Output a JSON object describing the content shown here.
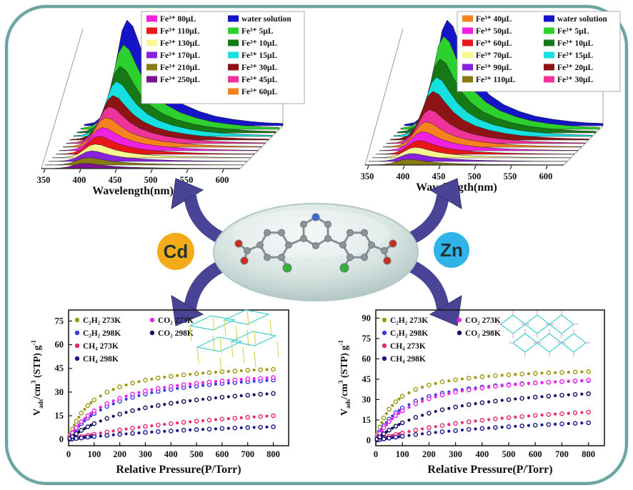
{
  "figure": {
    "cd_label": "Cd",
    "zn_label": "Zn"
  },
  "colors": {
    "border_accent": "#6aa4a1",
    "arrow": "#4a4496",
    "cd_badge": "#f3ac17",
    "zn_badge": "#2fb3e8",
    "ellipse_fill": "#d9e5e3",
    "molecule": {
      "carbon": "#8f949c",
      "nitrogen": "#3a6bd6",
      "oxygen": "#d42a1e",
      "chlorine": "#35b03c"
    }
  },
  "chart_data": [
    {
      "id": "tl_spectra",
      "type": "area",
      "style": "3d-waterfall",
      "xlabel": "Wavelength(nm)",
      "x_ticks": [
        350,
        400,
        450,
        500,
        550,
        600
      ],
      "legend_x": 168,
      "legend": {
        "col1": [
          7,
          8,
          9,
          10,
          11,
          12
        ],
        "col2": [
          0,
          1,
          2,
          3,
          4,
          5,
          6
        ]
      },
      "series": [
        {
          "name": "water solution",
          "color": "#1515c8",
          "peak": 1.0
        },
        {
          "name": "Fe³⁺ 5μL",
          "color": "#2ed02e",
          "peak": 0.8
        },
        {
          "name": "Fe³⁺ 10μL",
          "color": "#157a15",
          "peak": 0.63
        },
        {
          "name": "Fe³⁺ 15μL",
          "color": "#17e0e0",
          "peak": 0.52
        },
        {
          "name": "Fe³⁺ 30μL",
          "color": "#8c1414",
          "peak": 0.42
        },
        {
          "name": "Fe³⁺ 45μL",
          "color": "#f0329b",
          "peak": 0.35
        },
        {
          "name": "Fe³⁺ 60μL",
          "color": "#f5821e",
          "peak": 0.28
        },
        {
          "name": "Fe³⁺ 80μL",
          "color": "#f020e0",
          "peak": 0.22
        },
        {
          "name": "Fe³⁺ 110μL",
          "color": "#e81616",
          "peak": 0.17
        },
        {
          "name": "Fe³⁺ 130μL",
          "color": "#f8f890",
          "peak": 0.13
        },
        {
          "name": "Fe³⁺ 170μL",
          "color": "#8822dd",
          "peak": 0.1
        },
        {
          "name": "Fe³⁺ 210μL",
          "color": "#8a7a14",
          "peak": 0.07
        },
        {
          "name": "Fe³⁺ 250μL",
          "color": "#7a1490",
          "peak": 0.05
        }
      ]
    },
    {
      "id": "tr_spectra",
      "type": "area",
      "style": "3d-waterfall",
      "xlabel": "Wavelength(nm)",
      "x_ticks": [
        350,
        400,
        450,
        500,
        550,
        600
      ],
      "legend_x": 162,
      "legend": {
        "col1": [
          6,
          7,
          8,
          9,
          10,
          11
        ],
        "col2": [
          0,
          1,
          2,
          3,
          4,
          5
        ]
      },
      "series": [
        {
          "name": "water solution",
          "color": "#1515c8",
          "peak": 1.0
        },
        {
          "name": "Fe³⁺ 5μL",
          "color": "#2ed02e",
          "peak": 0.88
        },
        {
          "name": "Fe³⁺ 10μL",
          "color": "#157a15",
          "peak": 0.7
        },
        {
          "name": "Fe³⁺ 15μL",
          "color": "#17e0e0",
          "peak": 0.56
        },
        {
          "name": "Fe³⁺ 20μL",
          "color": "#8c1414",
          "peak": 0.46
        },
        {
          "name": "Fe³⁺ 30μL",
          "color": "#f0329b",
          "peak": 0.32
        },
        {
          "name": "Fe³⁺ 40μL",
          "color": "#f5821e",
          "peak": 0.24
        },
        {
          "name": "Fe³⁺ 50μL",
          "color": "#f020e0",
          "peak": 0.18
        },
        {
          "name": "Fe³⁺ 60μL",
          "color": "#e81616",
          "peak": 0.13
        },
        {
          "name": "Fe³⁺ 70μL",
          "color": "#f8f890",
          "peak": 0.1
        },
        {
          "name": "Fe³⁺ 90μL",
          "color": "#8822dd",
          "peak": 0.075
        },
        {
          "name": "Fe³⁺ 110μL",
          "color": "#8a7a14",
          "peak": 0.055
        }
      ]
    },
    {
      "id": "bl_isotherm",
      "type": "scatter",
      "xlabel": "Relative Pressure(P/Torr)",
      "ylabel_parts": [
        {
          "t": "V",
          "s": 0
        },
        {
          "t": "ads",
          "s": 1
        },
        {
          "t": "/cm",
          "s": 0
        },
        {
          "t": "3",
          "s": -1
        },
        {
          "t": " (STP) g",
          "s": 0
        },
        {
          "t": "-1",
          "s": -1
        }
      ],
      "x_ticks": [
        0,
        100,
        200,
        300,
        400,
        500,
        600,
        700,
        800
      ],
      "y_ticks": [
        0,
        15,
        30,
        45,
        60,
        75
      ],
      "ylim": [
        -4,
        82
      ],
      "inset": "cd",
      "x": [
        5,
        15,
        30,
        50,
        75,
        100,
        150,
        200,
        250,
        300,
        350,
        400,
        450,
        500,
        550,
        600,
        650,
        700,
        750,
        800
      ],
      "series": [
        {
          "name": "C₂H₂ 273K",
          "color": "#9a9a10",
          "values": [
            2.4,
            6.5,
            11.5,
            16.7,
            21.4,
            25.0,
            30.0,
            33.3,
            35.7,
            37.5,
            38.9,
            40.0,
            40.9,
            41.7,
            42.3,
            42.9,
            43.3,
            43.8,
            44.1,
            44.4
          ]
        },
        {
          "name": "C₂H₂ 298K",
          "color": "#3a3ae0",
          "values": [
            1.2,
            3.5,
            6.6,
            10.0,
            13.5,
            16.4,
            20.9,
            24.2,
            26.7,
            28.8,
            30.4,
            31.7,
            32.9,
            33.8,
            34.7,
            35.4,
            36.0,
            36.6,
            37.1,
            37.6
          ]
        },
        {
          "name": "CH₄  273K",
          "color": "#e8286e",
          "values": [
            0.2,
            0.6,
            1.1,
            1.8,
            2.6,
            3.3,
            4.7,
            6.0,
            7.1,
            8.2,
            9.1,
            10.0,
            10.8,
            11.5,
            12.2,
            12.9,
            13.4,
            14.0,
            14.5,
            15.0
          ]
        },
        {
          "name": "CH₄  298K",
          "color": "#18188c",
          "values": [
            0.1,
            0.3,
            0.6,
            0.9,
            1.4,
            1.8,
            2.5,
            3.2,
            3.8,
            4.4,
            4.9,
            5.3,
            5.8,
            6.2,
            6.5,
            6.9,
            7.2,
            7.5,
            7.7,
            8.0
          ]
        },
        {
          "name": "CO₂  273K",
          "color": "#ee22ee",
          "values": [
            1.4,
            4.0,
            7.4,
            11.2,
            15.0,
            18.1,
            22.7,
            26.1,
            28.7,
            30.7,
            32.3,
            33.6,
            34.7,
            35.6,
            36.4,
            37.1,
            37.7,
            38.3,
            38.7,
            39.2
          ]
        },
        {
          "name": "CO₂  298K",
          "color": "#101060",
          "values": [
            0.7,
            1.9,
            3.6,
            5.7,
            8.0,
            10.0,
            13.3,
            16.0,
            18.2,
            20.0,
            21.5,
            22.9,
            24.0,
            25.0,
            25.9,
            26.7,
            27.4,
            28.0,
            28.6,
            29.1
          ]
        }
      ]
    },
    {
      "id": "br_isotherm",
      "type": "scatter",
      "xlabel": "Relative Pressure(P/Torr)",
      "ylabel_parts": [
        {
          "t": "V",
          "s": 0
        },
        {
          "t": "ads",
          "s": 1
        },
        {
          "t": "/cm",
          "s": 0
        },
        {
          "t": "3",
          "s": -1
        },
        {
          "t": " (STP) g",
          "s": 0
        },
        {
          "t": "-1",
          "s": -1
        }
      ],
      "x_ticks": [
        0,
        100,
        200,
        300,
        400,
        500,
        600,
        700,
        800
      ],
      "y_ticks": [
        0,
        15,
        30,
        45,
        60,
        75,
        90
      ],
      "ylim": [
        -4,
        96
      ],
      "inset": "zn",
      "x": [
        5,
        15,
        30,
        50,
        75,
        100,
        150,
        200,
        250,
        300,
        350,
        400,
        450,
        500,
        550,
        600,
        650,
        700,
        750,
        800
      ],
      "series": [
        {
          "name": "C₂H₂ 273K",
          "color": "#9a9a10",
          "values": [
            3.7,
            9.7,
            16.5,
            22.9,
            28.4,
            32.4,
            37.5,
            40.7,
            43.0,
            44.6,
            45.8,
            46.8,
            47.6,
            48.2,
            48.8,
            49.3,
            49.7,
            50.0,
            50.3,
            50.6
          ]
        },
        {
          "name": "C₂H₂ 298K",
          "color": "#3a3ae0",
          "values": [
            2.2,
            6.0,
            10.7,
            15.6,
            20.3,
            23.8,
            28.8,
            32.3,
            34.7,
            36.6,
            38.0,
            39.2,
            40.2,
            41.0,
            41.7,
            42.3,
            42.8,
            43.2,
            43.6,
            44.0
          ]
        },
        {
          "name": "CH₄  273K",
          "color": "#e8286e",
          "values": [
            0.3,
            0.9,
            1.8,
            2.9,
            4.2,
            5.4,
            7.5,
            9.3,
            10.9,
            12.4,
            13.6,
            14.7,
            15.8,
            16.7,
            17.5,
            18.3,
            19.0,
            19.6,
            20.2,
            20.7
          ]
        },
        {
          "name": "CH₄  298K",
          "color": "#18188c",
          "values": [
            0.2,
            0.5,
            1.0,
            1.6,
            2.3,
            2.9,
            4.2,
            5.3,
            6.3,
            7.1,
            8.0,
            8.7,
            9.4,
            10.0,
            10.6,
            11.1,
            11.6,
            12.1,
            12.5,
            12.9
          ]
        },
        {
          "name": "CO₂  273K",
          "color": "#ee22ee",
          "values": [
            1.8,
            5.0,
            9.2,
            13.7,
            18.1,
            21.7,
            26.9,
            30.6,
            33.3,
            35.5,
            37.1,
            38.5,
            39.7,
            40.6,
            41.4,
            42.2,
            42.8,
            43.3,
            43.8,
            44.3
          ]
        },
        {
          "name": "CO₂  298K",
          "color": "#101060",
          "values": [
            0.9,
            2.5,
            4.8,
            7.5,
            10.4,
            12.9,
            16.9,
            20.0,
            22.5,
            24.5,
            26.3,
            27.7,
            28.9,
            30.0,
            30.9,
            31.8,
            32.5,
            33.2,
            33.8,
            34.3
          ]
        }
      ]
    }
  ]
}
